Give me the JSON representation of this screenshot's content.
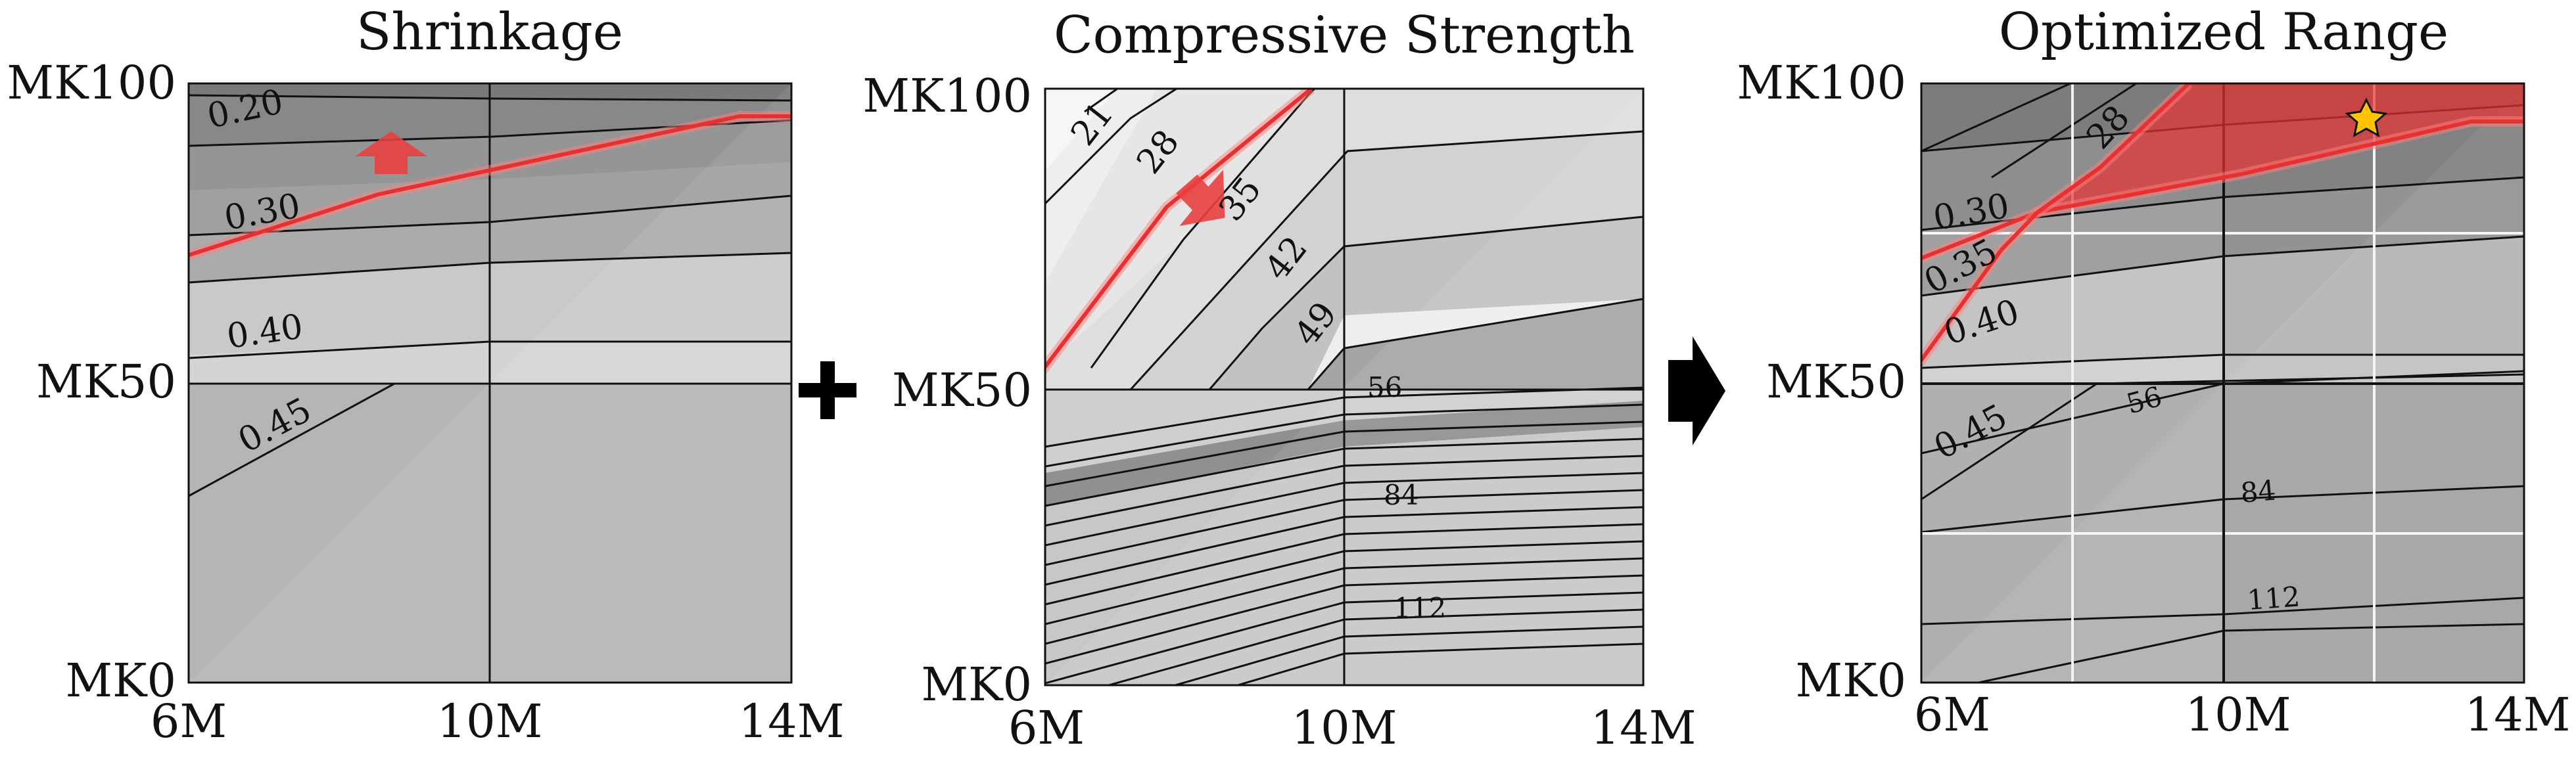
{
  "chart_data": [
    {
      "type": "contour",
      "title": "Shrinkage",
      "x_ticks": [
        "6M",
        "10M",
        "14M"
      ],
      "y_ticks": [
        "MK100",
        "MK50",
        "MK0"
      ],
      "contour_labels": [
        "0.20",
        "0.30",
        "0.40",
        "0.45"
      ],
      "highlight_color": "#e83030"
    },
    {
      "type": "contour",
      "title": "Compressive Strength",
      "x_ticks": [
        "6M",
        "10M",
        "14M"
      ],
      "y_ticks": [
        "MK100",
        "MK50",
        "MK0"
      ],
      "contour_labels": [
        "21",
        "28",
        "35",
        "42",
        "49",
        "56",
        "84",
        "112"
      ],
      "highlight_color": "#e83030"
    },
    {
      "type": "contour",
      "title": "Optimized Range",
      "x_ticks": [
        "6M",
        "10M",
        "14M"
      ],
      "y_ticks": [
        "MK100",
        "MK50",
        "MK0"
      ],
      "contour_labels": [
        "28",
        "0.30",
        "0.35",
        "0.40",
        "0.45",
        "56",
        "84",
        "112"
      ],
      "highlight_color": "#e83030",
      "marker": "star"
    }
  ],
  "operators": {
    "plus_symbol": "plus-icon",
    "arrow_symbol": "right-arrow-icon"
  }
}
